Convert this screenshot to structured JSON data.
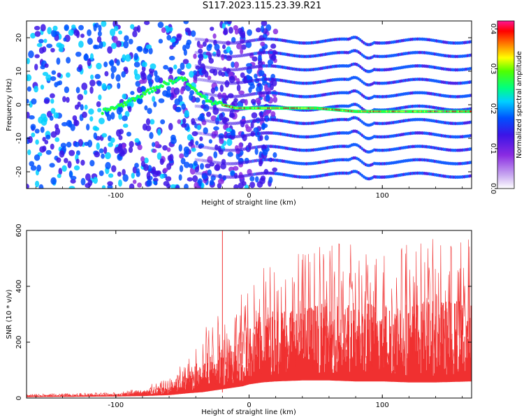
{
  "title": "S117.2023.115.23.39.R21",
  "chart_data": [
    {
      "type": "heatmap",
      "xlabel": "Height of straight line (km)",
      "ylabel": "Frequency (Hz)",
      "xlim": [
        -167,
        167
      ],
      "ylim": [
        -25,
        25
      ],
      "xticks": [
        -100,
        0,
        100
      ],
      "yticks": [
        -20,
        -10,
        0,
        10,
        20
      ],
      "colorbar": {
        "label": "Normalized spectral amplitude",
        "range": [
          0,
          0.42
        ],
        "ticks": [
          0.0,
          0.1,
          0.2,
          0.3,
          0.4
        ],
        "colors": [
          "#ffffff",
          "#c8a8f0",
          "#8a2be2",
          "#3c14e6",
          "#0050ff",
          "#00d0ff",
          "#00ff80",
          "#50ff00",
          "#ffff00",
          "#ff8000",
          "#ff0000",
          "#ff1493"
        ]
      },
      "ridge": {
        "description_points_x": [
          -110,
          -95,
          -80,
          -65,
          -50,
          -40,
          -30,
          -20,
          -10,
          0,
          20,
          50,
          80,
          100,
          130,
          167
        ],
        "description_points_y": [
          -2,
          0,
          3,
          6,
          8,
          4,
          1,
          0,
          -1,
          -1,
          -1,
          -1,
          -2,
          -2,
          -2,
          -2
        ]
      },
      "bands_hz": [
        -21,
        -17,
        -13,
        -9,
        -5,
        -1,
        3,
        7,
        11,
        15,
        19
      ]
    },
    {
      "type": "line",
      "xlabel": "Height of straight line (km)",
      "ylabel": "SNR (10 * v/v)",
      "xlim": [
        -167,
        167
      ],
      "ylim": [
        0,
        600
      ],
      "xticks": [
        -100,
        0,
        100
      ],
      "yticks": [
        0,
        200,
        400,
        600
      ],
      "color": "#f03030",
      "envelope": {
        "x": [
          -167,
          -100,
          -80,
          -60,
          -45,
          -35,
          -25,
          -15,
          -5,
          0,
          10,
          20,
          40,
          60,
          80,
          100,
          120,
          140,
          167
        ],
        "upper": [
          15,
          20,
          40,
          70,
          150,
          250,
          300,
          320,
          380,
          400,
          480,
          520,
          540,
          550,
          560,
          560,
          570,
          570,
          580
        ],
        "baseline": [
          5,
          8,
          10,
          15,
          25,
          30,
          40,
          50,
          60,
          70,
          80,
          85,
          90,
          90,
          85,
          85,
          80,
          80,
          85
        ]
      },
      "spikes": [
        {
          "x": -20,
          "y": 600
        }
      ]
    }
  ]
}
